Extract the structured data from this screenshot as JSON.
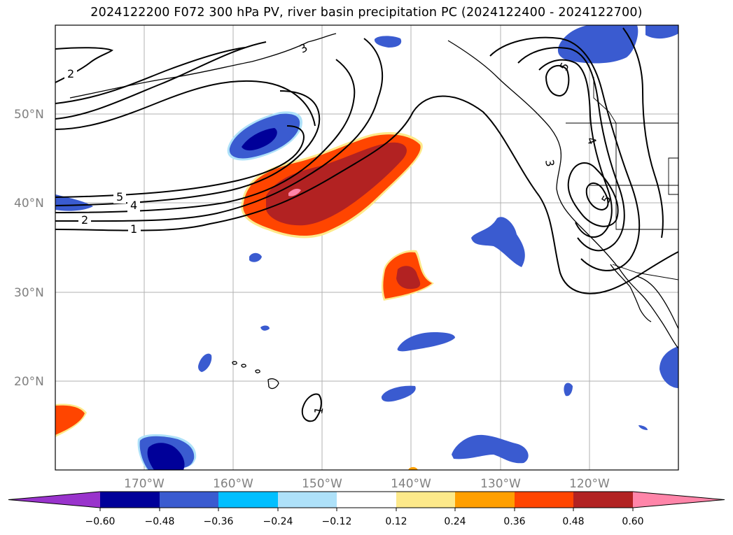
{
  "title": "2024122200 F072 300 hPa PV, river basin precipitation PC (2024122400 - 2024122700)",
  "map": {
    "projection": "PlateCarree",
    "lon_range": [
      -180,
      -110
    ],
    "lat_range": [
      10,
      60
    ],
    "lat_ticks": [
      {
        "value": 50,
        "label": "50°N"
      },
      {
        "value": 40,
        "label": "40°N"
      },
      {
        "value": 30,
        "label": "30°N"
      },
      {
        "value": 20,
        "label": "20°N"
      }
    ],
    "lon_ticks": [
      {
        "value": -170,
        "label": "170°W"
      },
      {
        "value": -160,
        "label": "160°W"
      },
      {
        "value": -150,
        "label": "150°W"
      },
      {
        "value": -140,
        "label": "140°W"
      },
      {
        "value": -130,
        "label": "130°W"
      },
      {
        "value": -120,
        "label": "120°W"
      }
    ],
    "gridlines": true
  },
  "contour_labels": [
    "1",
    "2",
    "4",
    "5",
    "2",
    "3",
    "4",
    "3",
    "5",
    "5",
    "1"
  ],
  "colorbar": {
    "ticks": [
      "−0.60",
      "−0.48",
      "−0.36",
      "−0.24",
      "−0.12",
      "0.12",
      "0.24",
      "0.36",
      "0.48",
      "0.60"
    ],
    "colors": {
      "under": "#9933cc",
      "b1": "#000099",
      "b2": "#3a5bd0",
      "b3": "#00bfff",
      "b4": "#aee1f9",
      "b5": "#ffffff",
      "b6": "#fde98a",
      "b7": "#ff9f00",
      "b8": "#ff4500",
      "b9": "#b22222",
      "over": "#ff85a9"
    }
  }
}
